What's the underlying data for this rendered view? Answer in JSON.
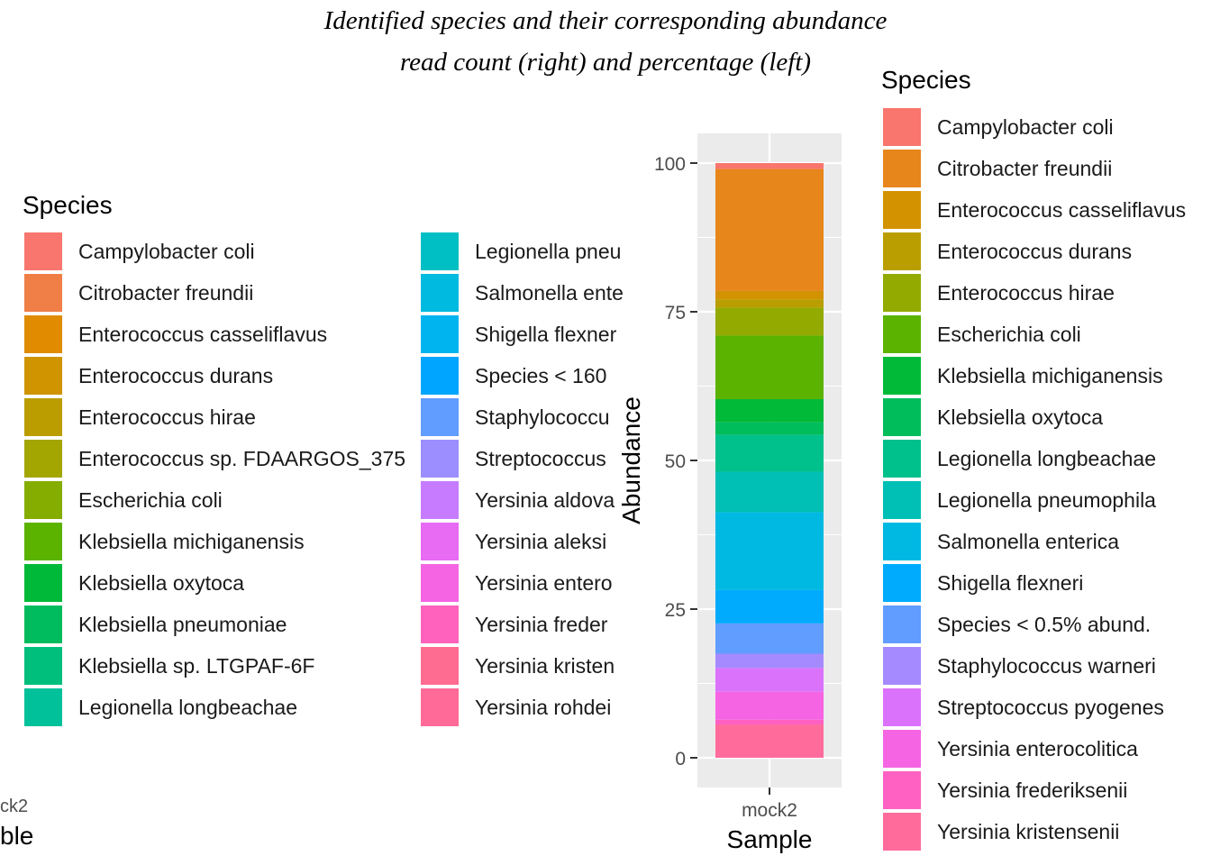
{
  "title": {
    "line1": "Identified species and their corresponding abundance",
    "line2": "read count (right) and percentage (left)"
  },
  "left_panel": {
    "x_tick_fragment": "ck2",
    "x_label_fragment": "ble",
    "legend": {
      "title": "Species",
      "items": [
        {
          "label": "Campylobacter coli",
          "color": "#F8766D"
        },
        {
          "label": "Citrobacter freundii",
          "color": "#EF7F47"
        },
        {
          "label": "Enterococcus casseliflavus",
          "color": "#E08B00"
        },
        {
          "label": "Enterococcus durans",
          "color": "#CF9400"
        },
        {
          "label": "Enterococcus hirae",
          "color": "#BB9D00"
        },
        {
          "label": "Enterococcus sp. FDAARGOS_375",
          "color": "#A3A500"
        },
        {
          "label": "Escherichia coli",
          "color": "#84AD00"
        },
        {
          "label": "Klebsiella michiganensis",
          "color": "#5BB300"
        },
        {
          "label": "Klebsiella oxytoca",
          "color": "#00B938"
        },
        {
          "label": "Klebsiella pneumoniae",
          "color": "#00BC5E"
        },
        {
          "label": "Klebsiella sp. LTGPAF-6F",
          "color": "#00BF7D"
        },
        {
          "label": "Legionella longbeachae",
          "color": "#00C19A"
        },
        {
          "label": "Legionella pneu",
          "color": "#00BFC4"
        },
        {
          "label": "Salmonella ente",
          "color": "#00BAE0"
        },
        {
          "label": "Shigella flexner",
          "color": "#00B4F0"
        },
        {
          "label": "Species < 160",
          "color": "#00A5FF"
        },
        {
          "label": "Staphylococcu",
          "color": "#619CFF"
        },
        {
          "label": "Streptococcus",
          "color": "#9C8EFF"
        },
        {
          "label": "Yersinia aldova",
          "color": "#C77CFF"
        },
        {
          "label": "Yersinia aleksi",
          "color": "#E76BF3"
        },
        {
          "label": "Yersinia entero",
          "color": "#F564E3"
        },
        {
          "label": "Yersinia freder",
          "color": "#FF62BC"
        },
        {
          "label": "Yersinia kristen",
          "color": "#FF6C91"
        },
        {
          "label": "Yersinia rohdei",
          "color": "#FF6A98"
        }
      ]
    }
  },
  "chart_data": {
    "type": "bar",
    "stacked": true,
    "title": "Identified species and their corresponding abundance read count (right) and percentage (left)",
    "xlabel": "Sample",
    "ylabel": "Abundance",
    "categories": [
      "mock2"
    ],
    "ylim": [
      -5,
      105
    ],
    "yticks": [
      0,
      25,
      50,
      75,
      100
    ],
    "grid": true,
    "legend_position": "right",
    "legend_title": "Species",
    "series": [
      {
        "name": "Campylobacter coli",
        "values": [
          1.0
        ],
        "color": "#F8766D"
      },
      {
        "name": "Citrobacter freundii",
        "values": [
          20.5
        ],
        "color": "#E7861B"
      },
      {
        "name": "Enterococcus casseliflavus",
        "values": [
          1.4
        ],
        "color": "#D39200"
      },
      {
        "name": "Enterococcus durans",
        "values": [
          1.4
        ],
        "color": "#BA9E00"
      },
      {
        "name": "Enterococcus hirae",
        "values": [
          4.7
        ],
        "color": "#93AA00"
      },
      {
        "name": "Escherichia coli",
        "values": [
          10.7
        ],
        "color": "#5BB300"
      },
      {
        "name": "Klebsiella michiganensis",
        "values": [
          3.9
        ],
        "color": "#00BA38"
      },
      {
        "name": "Klebsiella oxytoca",
        "values": [
          2.1
        ],
        "color": "#00BD5C"
      },
      {
        "name": "Legionella longbeachae",
        "values": [
          6.2
        ],
        "color": "#00C08B"
      },
      {
        "name": "Legionella pneumophila",
        "values": [
          6.8
        ],
        "color": "#00BFB4"
      },
      {
        "name": "Salmonella enterica",
        "values": [
          13.1
        ],
        "color": "#00B9E3"
      },
      {
        "name": "Shigella flexneri",
        "values": [
          5.6
        ],
        "color": "#00ABFD"
      },
      {
        "name": "Species < 0.5% abund.",
        "values": [
          5.1
        ],
        "color": "#619CFF"
      },
      {
        "name": "Staphylococcus warneri",
        "values": [
          2.4
        ],
        "color": "#A58AFF"
      },
      {
        "name": "Streptococcus pyogenes",
        "values": [
          4.0
        ],
        "color": "#DB72FB"
      },
      {
        "name": "Yersinia enterocolitica",
        "values": [
          4.7
        ],
        "color": "#F564E3"
      },
      {
        "name": "Yersinia frederiksenii",
        "values": [
          0.8
        ],
        "color": "#FF61C3"
      },
      {
        "name": "Yersinia kristensenii",
        "values": [
          5.6
        ],
        "color": "#FF6C9C"
      }
    ]
  }
}
